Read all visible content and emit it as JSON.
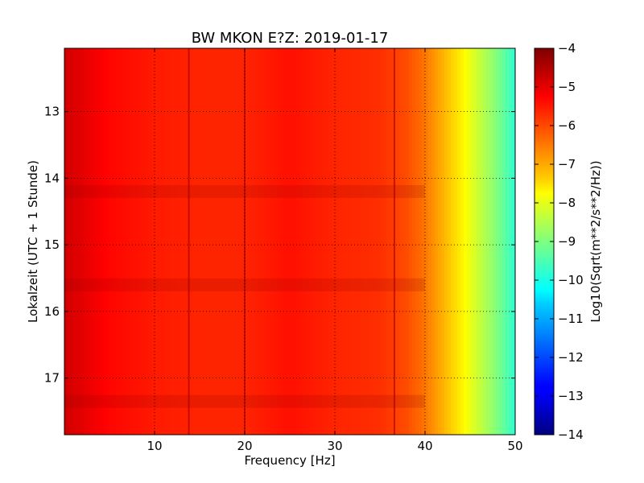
{
  "chart_data": {
    "type": "heatmap",
    "title": "BW MKON E?Z: 2019-01-17",
    "xlabel": "Frequency [Hz]",
    "ylabel": "Lokalzeit (UTC + 1 Stunde)",
    "xlim": [
      0,
      50
    ],
    "ylim": [
      12.05,
      17.85
    ],
    "y_inverted": true,
    "x_ticks": [
      10,
      20,
      30,
      40,
      50
    ],
    "x_tick_labels": [
      "10",
      "20",
      "30",
      "40",
      "50"
    ],
    "y_ticks": [
      13,
      14,
      15,
      16,
      17
    ],
    "y_tick_labels": [
      "13",
      "14",
      "15",
      "16",
      "17"
    ],
    "grid": true,
    "colorbar": {
      "label": "Log10(Sqrt(m**2/s**2/Hz))",
      "range": [
        -14,
        -4
      ],
      "ticks": [
        -4,
        -5,
        -6,
        -7,
        -8,
        -9,
        -10,
        -11,
        -12,
        -13,
        -14
      ],
      "tick_labels": [
        "−4",
        "−5",
        "−6",
        "−7",
        "−8",
        "−9",
        "−10",
        "−11",
        "−12",
        "−13",
        "−14"
      ],
      "colormap": "jet"
    },
    "spectrum_profile": {
      "frequency_hz": [
        0,
        2,
        5,
        10,
        15,
        20,
        25,
        30,
        35,
        38,
        40,
        42,
        44,
        46,
        48,
        50
      ],
      "level": [
        -4.8,
        -5.0,
        -5.3,
        -5.5,
        -5.6,
        -5.6,
        -5.4,
        -5.6,
        -5.7,
        -6.0,
        -6.4,
        -7.0,
        -7.6,
        -8.3,
        -9.0,
        -9.8
      ]
    },
    "vertical_lines_hz": [
      13.8,
      20.0,
      36.6
    ],
    "dark_bands_time": [
      14.2,
      15.6,
      17.35
    ]
  }
}
